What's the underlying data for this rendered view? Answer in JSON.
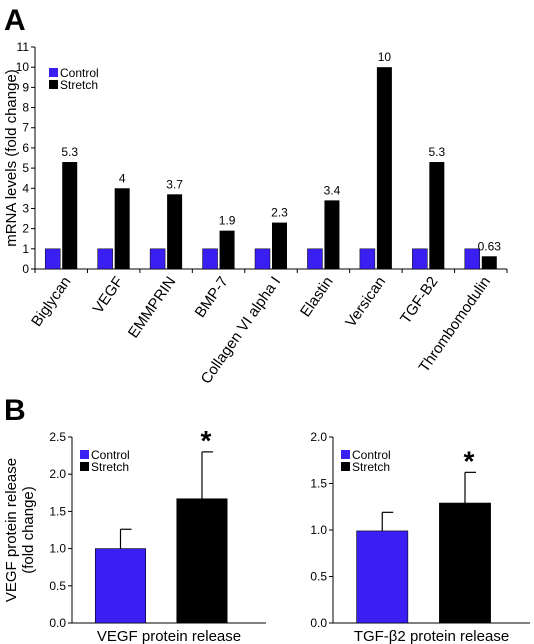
{
  "panel_labels": {
    "a": "A",
    "b": "B"
  },
  "colors": {
    "control": "#3a1ff2",
    "stretch": "#000000"
  },
  "chart_data": [
    {
      "type": "bar",
      "categories": [
        "Biglycan",
        "VEGF",
        "EMMPRIN",
        "BMP-7",
        "Collagen VI alpha I",
        "Elastin",
        "Versican",
        "TGF-B2",
        "Thrombomodulin"
      ],
      "series": [
        {
          "name": "Control",
          "values": [
            1,
            1,
            1,
            1,
            1,
            1,
            1,
            1,
            1
          ]
        },
        {
          "name": "Stretch",
          "values": [
            5.3,
            4,
            3.7,
            1.9,
            2.3,
            3.4,
            10,
            5.3,
            0.63
          ]
        }
      ],
      "data_labels": [
        "5.3",
        "4",
        "3.7",
        "1.9",
        "2.3",
        "3.4",
        "10",
        "5.3",
        "0.63"
      ],
      "title": "",
      "xlabel": "",
      "ylabel": "mRNA levels (fold change)",
      "ylim": [
        0,
        11
      ],
      "yticks": [
        0,
        1,
        2,
        3,
        4,
        5,
        6,
        7,
        8,
        9,
        10,
        11
      ],
      "legend": "top-left",
      "grid": false
    },
    {
      "type": "bar",
      "categories": [
        "Control",
        "Stretch"
      ],
      "values": [
        1.0,
        1.67
      ],
      "error": [
        0.26,
        0.63
      ],
      "significance": [
        "",
        "*"
      ],
      "title": "",
      "xlabel": "VEGF protein release",
      "ylabel": "VEGF protein release (fold change)",
      "ylabel_lines": [
        "VEGF protein release",
        "(fold change)"
      ],
      "ylim": [
        0,
        2.5
      ],
      "yticks": [
        "0.0",
        "0.5",
        "1.0",
        "1.5",
        "2.0",
        "2.5"
      ],
      "legend": "top-left",
      "grid": false
    },
    {
      "type": "bar",
      "categories": [
        "Control",
        "Stretch"
      ],
      "values": [
        0.99,
        1.29
      ],
      "error": [
        0.2,
        0.33
      ],
      "significance": [
        "",
        "*"
      ],
      "title": "",
      "xlabel": "TGF-β2 protein release",
      "ylabel": "",
      "ylim": [
        0,
        2.0
      ],
      "yticks": [
        "0.0",
        "0.5",
        "1.0",
        "1.5",
        "2.0"
      ],
      "legend": "top-left",
      "grid": false
    }
  ]
}
